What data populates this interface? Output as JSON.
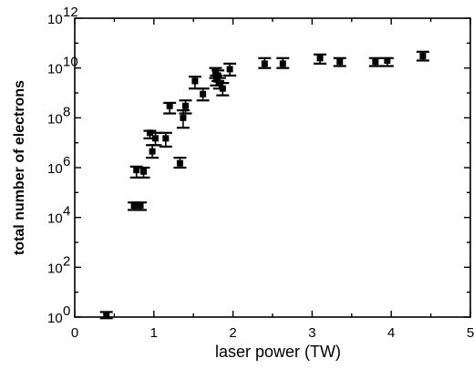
{
  "chart_data": {
    "type": "scatter",
    "title": "",
    "xlabel": "laser power (TW)",
    "ylabel": "total number of electrons",
    "xlim": [
      0,
      5
    ],
    "ylim": [
      1,
      1000000000000
    ],
    "yscale": "log",
    "grid": false,
    "legend": "none",
    "marker": "filled-square",
    "error_bars": "vertical",
    "x_tick_labels": [
      "0",
      "1",
      "2",
      "3",
      "4",
      "5"
    ],
    "y_tick_labels": [
      {
        "base": "10",
        "exp": "0"
      },
      {
        "base": "10",
        "exp": "2"
      },
      {
        "base": "10",
        "exp": "4"
      },
      {
        "base": "10",
        "exp": "6"
      },
      {
        "base": "10",
        "exp": "8"
      },
      {
        "base": "10",
        "exp": "10"
      },
      {
        "base": "10",
        "exp": "12"
      }
    ],
    "series": [
      {
        "points": [
          {
            "x": 0.4,
            "y": 1.2,
            "ylo": 0.9,
            "yhi": 1.6
          },
          {
            "x": 0.75,
            "y": 30000,
            "ylo": 20000,
            "yhi": 40000
          },
          {
            "x": 0.83,
            "y": 30000,
            "ylo": 20000,
            "yhi": 40000
          },
          {
            "x": 0.78,
            "y": 800000,
            "ylo": 400000,
            "yhi": 1100000
          },
          {
            "x": 0.87,
            "y": 700000,
            "ylo": 400000,
            "yhi": 1000000
          },
          {
            "x": 0.95,
            "y": 25000000,
            "ylo": 15000000,
            "yhi": 30000000
          },
          {
            "x": 0.98,
            "y": 4500000,
            "ylo": 2500000,
            "yhi": 8000000
          },
          {
            "x": 1.02,
            "y": 15000000,
            "ylo": 8000000,
            "yhi": 25000000
          },
          {
            "x": 1.15,
            "y": 15000000,
            "ylo": 7000000,
            "yhi": 25000000
          },
          {
            "x": 1.2,
            "y": 300000000,
            "ylo": 150000000,
            "yhi": 400000000
          },
          {
            "x": 1.33,
            "y": 1500000,
            "ylo": 1000000,
            "yhi": 2500000
          },
          {
            "x": 1.37,
            "y": 100000000,
            "ylo": 40000000,
            "yhi": 200000000
          },
          {
            "x": 1.4,
            "y": 300000000,
            "ylo": 150000000,
            "yhi": 500000000
          },
          {
            "x": 1.52,
            "y": 3000000000,
            "ylo": 1500000000,
            "yhi": 4500000000
          },
          {
            "x": 1.62,
            "y": 900000000,
            "ylo": 500000000,
            "yhi": 1500000000
          },
          {
            "x": 1.78,
            "y": 7000000000,
            "ylo": 4000000000,
            "yhi": 10000000000
          },
          {
            "x": 1.79,
            "y": 3500000000,
            "ylo": 2000000000,
            "yhi": 5000000000
          },
          {
            "x": 1.81,
            "y": 5000000000,
            "ylo": 3000000000,
            "yhi": 8000000000
          },
          {
            "x": 1.83,
            "y": 2500000000,
            "ylo": 1500000000,
            "yhi": 4000000000
          },
          {
            "x": 1.87,
            "y": 1500000000,
            "ylo": 800000000,
            "yhi": 2500000000
          },
          {
            "x": 1.96,
            "y": 9000000000,
            "ylo": 5000000000,
            "yhi": 15000000000
          },
          {
            "x": 2.4,
            "y": 15000000000,
            "ylo": 10000000000,
            "yhi": 25000000000
          },
          {
            "x": 2.63,
            "y": 15000000000,
            "ylo": 10000000000,
            "yhi": 25000000000
          },
          {
            "x": 3.1,
            "y": 25000000000,
            "ylo": 15000000000,
            "yhi": 35000000000
          },
          {
            "x": 3.35,
            "y": 18000000000,
            "ylo": 12000000000,
            "yhi": 25000000000
          },
          {
            "x": 3.8,
            "y": 18000000000,
            "ylo": 12000000000,
            "yhi": 25000000000
          },
          {
            "x": 3.95,
            "y": 20000000000,
            "ylo": 12000000000,
            "yhi": 25000000000
          },
          {
            "x": 4.4,
            "y": 30000000000,
            "ylo": 20000000000,
            "yhi": 45000000000
          }
        ]
      }
    ]
  }
}
